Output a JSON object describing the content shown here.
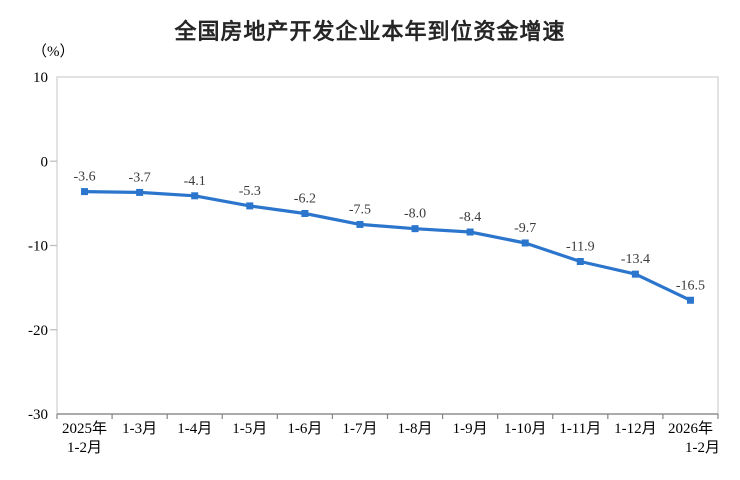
{
  "chart_data": {
    "type": "line",
    "title": "全国房地产开发企业本年到位资金增速",
    "unit_label": "（%）",
    "categories": [
      [
        "2025年",
        "1-2月"
      ],
      [
        "1-3月"
      ],
      [
        "1-4月"
      ],
      [
        "1-5月"
      ],
      [
        "1-6月"
      ],
      [
        "1-7月"
      ],
      [
        "1-8月"
      ],
      [
        "1-9月"
      ],
      [
        "1-10月"
      ],
      [
        "1-11月"
      ],
      [
        "1-12月"
      ],
      [
        "2026年",
        "1-2月"
      ]
    ],
    "values": [
      -3.6,
      -3.7,
      -4.1,
      -5.3,
      -6.2,
      -7.5,
      -8.0,
      -8.4,
      -9.7,
      -11.9,
      -13.4,
      -16.5
    ],
    "data_labels": [
      "-3.6",
      "-3.7",
      "-4.1",
      "-5.3",
      "-6.2",
      "-7.5",
      "-8.0",
      "-8.4",
      "-9.7",
      "-11.9",
      "-13.4",
      "-16.5"
    ],
    "y_ticks": [
      10,
      0,
      -10,
      -20,
      -30
    ],
    "y_tick_labels": [
      "10",
      "0",
      "-10",
      "-20",
      "-30"
    ],
    "ylim": [
      -30,
      10
    ],
    "grid": false,
    "legend": false,
    "line_color": "#2B76CC",
    "marker_color": "#2B76CC",
    "data_label_color": "#3B3B3B",
    "plot_border_color": "#D9D9D9",
    "axis_line_color": "#848484",
    "y_tick_mark_color": "#BFBFBF"
  }
}
